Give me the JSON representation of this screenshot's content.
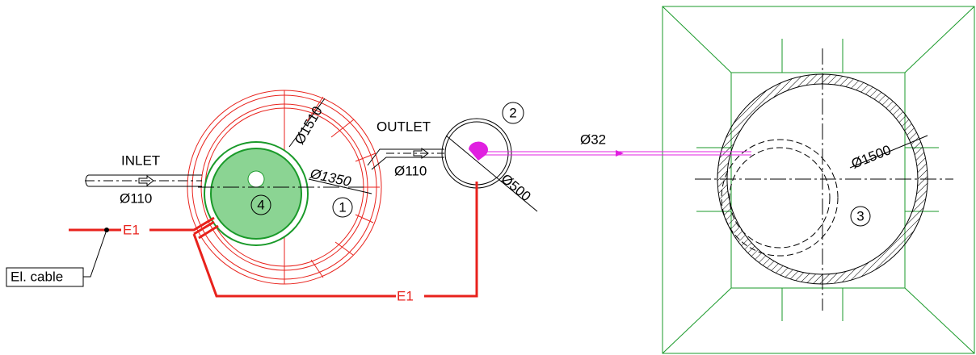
{
  "labels": {
    "inlet": "INLET",
    "inlet_diameter": "Ø110",
    "outlet": "OUTLET",
    "outlet_diameter": "Ø110",
    "tank_outer": "Ø1510",
    "tank_inner": "Ø1350",
    "chamber": "Ø500",
    "pressure_pipe": "Ø32",
    "well": "Ø1500",
    "cable_callout": "El. cable"
  },
  "cables": [
    "E1",
    "E1"
  ],
  "markers": [
    "1",
    "2",
    "3",
    "4"
  ]
}
